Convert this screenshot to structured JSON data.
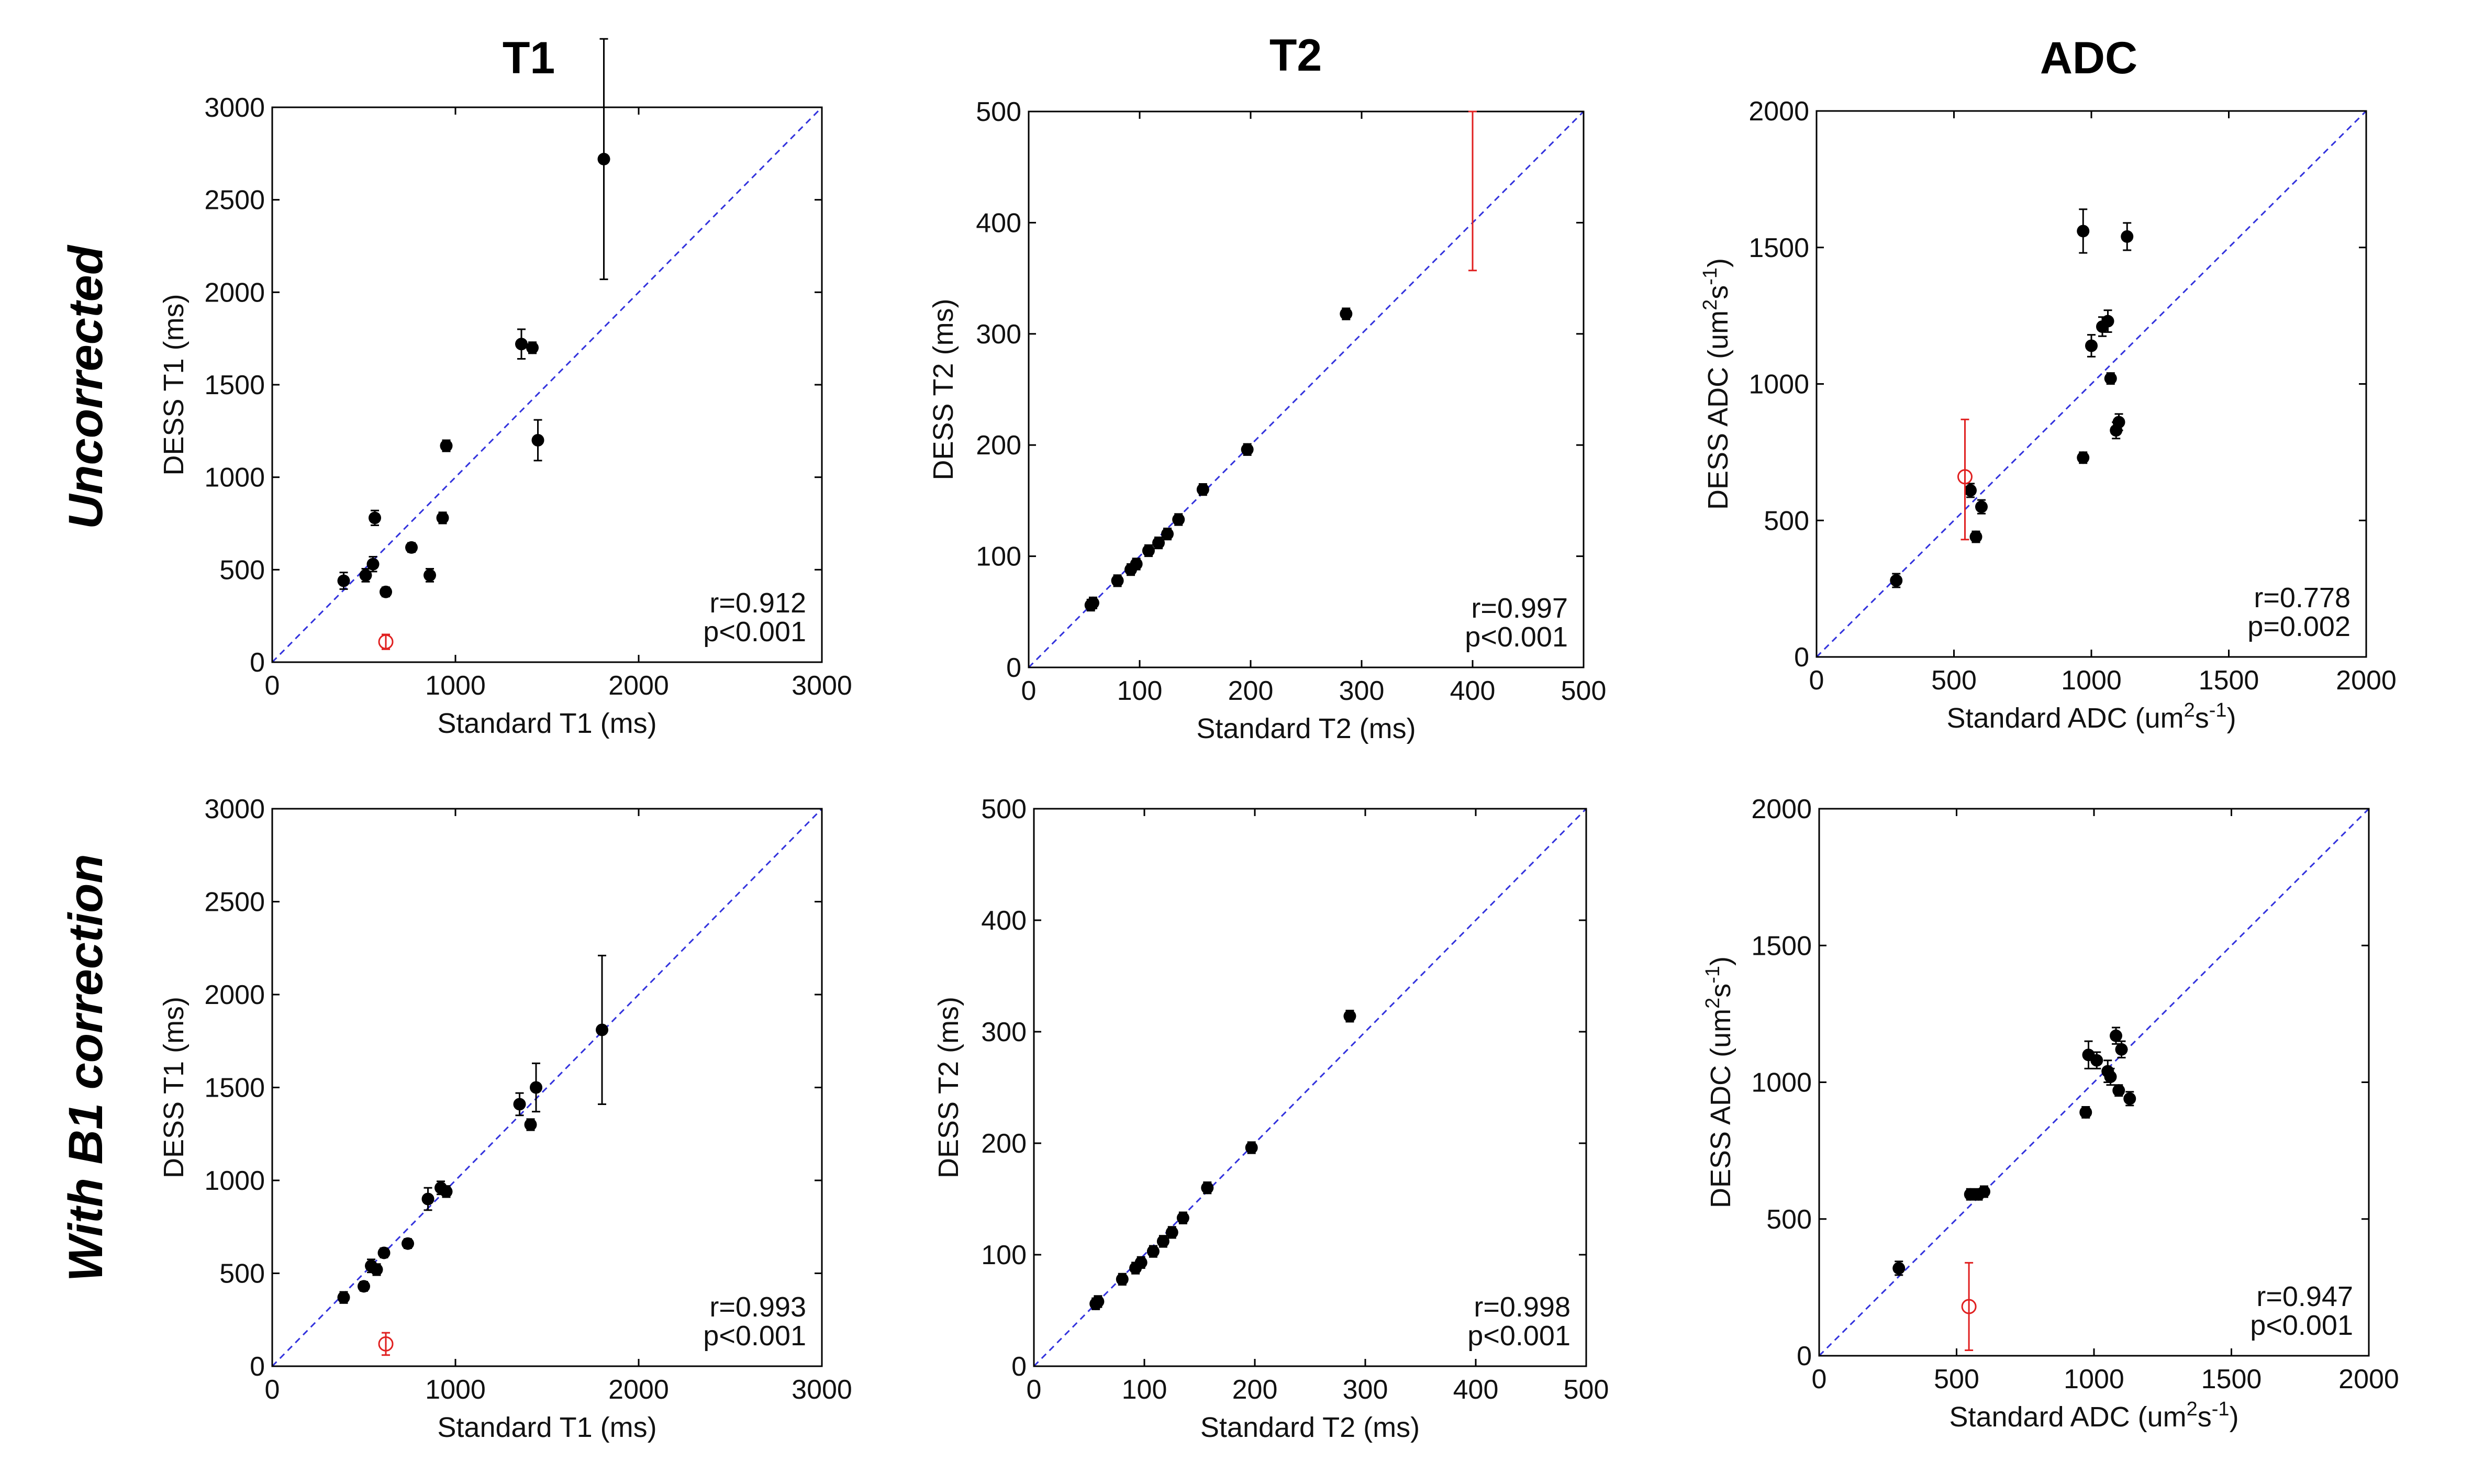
{
  "column_titles": [
    "T1",
    "T2",
    "ADC"
  ],
  "row_titles": [
    "Uncorrected",
    "With B1 correction"
  ],
  "chart_data": [
    {
      "type": "scatter",
      "row": 0,
      "col": 0,
      "title": "T1",
      "xlabel": "Standard T1 (ms)",
      "ylabel": "DESS T1 (ms)",
      "xlim": [
        0,
        3000
      ],
      "ylim": [
        0,
        3000
      ],
      "xticks": [
        0,
        1000,
        2000,
        3000
      ],
      "yticks": [
        0,
        500,
        1000,
        1500,
        2000,
        2500,
        3000
      ],
      "stat_r": "r=0.912",
      "stat_p": "p<0.001",
      "points": [
        {
          "x": 390,
          "y": 440,
          "err": 45
        },
        {
          "x": 510,
          "y": 470,
          "err": 35
        },
        {
          "x": 550,
          "y": 530,
          "err": 40
        },
        {
          "x": 560,
          "y": 780,
          "err": 40
        },
        {
          "x": 620,
          "y": 380,
          "err": 25
        },
        {
          "x": 760,
          "y": 620,
          "err": 25
        },
        {
          "x": 860,
          "y": 470,
          "err": 35
        },
        {
          "x": 930,
          "y": 780,
          "err": 30
        },
        {
          "x": 950,
          "y": 1170,
          "err": 30
        },
        {
          "x": 1360,
          "y": 1720,
          "err": 80
        },
        {
          "x": 1420,
          "y": 1700,
          "err": 30
        },
        {
          "x": 1450,
          "y": 1200,
          "err": 110
        },
        {
          "x": 1810,
          "y": 2720,
          "err": 650
        }
      ],
      "outliers": [
        {
          "x": 620,
          "y": 110,
          "err": 40
        }
      ]
    },
    {
      "type": "scatter",
      "row": 0,
      "col": 1,
      "title": "T2",
      "xlabel": "Standard T2 (ms)",
      "ylabel": "DESS T2 (ms)",
      "xlim": [
        0,
        500
      ],
      "ylim": [
        0,
        500
      ],
      "xticks": [
        0,
        100,
        200,
        300,
        400,
        500
      ],
      "yticks": [
        0,
        100,
        200,
        300,
        400,
        500
      ],
      "stat_r": "r=0.997",
      "stat_p": "p<0.001",
      "points": [
        {
          "x": 56,
          "y": 56,
          "err": 5
        },
        {
          "x": 58,
          "y": 58,
          "err": 5
        },
        {
          "x": 80,
          "y": 78,
          "err": 5
        },
        {
          "x": 92,
          "y": 88,
          "err": 5
        },
        {
          "x": 97,
          "y": 93,
          "err": 5
        },
        {
          "x": 108,
          "y": 105,
          "err": 5
        },
        {
          "x": 117,
          "y": 112,
          "err": 5
        },
        {
          "x": 125,
          "y": 120,
          "err": 5
        },
        {
          "x": 135,
          "y": 133,
          "err": 5
        },
        {
          "x": 157,
          "y": 160,
          "err": 5
        },
        {
          "x": 197,
          "y": 196,
          "err": 5
        },
        {
          "x": 286,
          "y": 318,
          "err": 5
        }
      ],
      "outliers": [
        {
          "x": 400,
          "y": 500,
          "err": 0,
          "bar_low": 357,
          "bar_high": 500,
          "hidden_marker": true
        }
      ]
    },
    {
      "type": "scatter",
      "row": 0,
      "col": 2,
      "title": "ADC",
      "xlabel": "Standard ADC (um²s⁻¹)",
      "ylabel": "DESS ADC (um²s⁻¹)",
      "xlabel_base": "Standard ADC (um",
      "xlabel_sup1": "2",
      "xlabel_mid": "s",
      "xlabel_sup2": "-1",
      "xlabel_end": ")",
      "ylabel_base": "DESS ADC (um",
      "ylabel_sup1": "2",
      "ylabel_mid": "s",
      "ylabel_sup2": "-1",
      "ylabel_end": ")",
      "xlim": [
        0,
        2000
      ],
      "ylim": [
        0,
        2000
      ],
      "xticks": [
        0,
        500,
        1000,
        1500,
        2000
      ],
      "yticks": [
        0,
        500,
        1000,
        1500,
        2000
      ],
      "stat_r": "r=0.778",
      "stat_p": "p=0.002",
      "points": [
        {
          "x": 290,
          "y": 280,
          "err": 25
        },
        {
          "x": 560,
          "y": 610,
          "err": 25
        },
        {
          "x": 580,
          "y": 440,
          "err": 20
        },
        {
          "x": 600,
          "y": 550,
          "err": 25
        },
        {
          "x": 970,
          "y": 730,
          "err": 20
        },
        {
          "x": 970,
          "y": 1560,
          "err": 80
        },
        {
          "x": 1000,
          "y": 1140,
          "err": 40
        },
        {
          "x": 1040,
          "y": 1210,
          "err": 35
        },
        {
          "x": 1060,
          "y": 1230,
          "err": 40
        },
        {
          "x": 1070,
          "y": 1020,
          "err": 20
        },
        {
          "x": 1090,
          "y": 830,
          "err": 30
        },
        {
          "x": 1100,
          "y": 860,
          "err": 30
        },
        {
          "x": 1130,
          "y": 1540,
          "err": 50
        }
      ],
      "outliers": [
        {
          "x": 540,
          "y": 660,
          "err": 0,
          "bar_low": 430,
          "bar_high": 870
        }
      ]
    },
    {
      "type": "scatter",
      "row": 1,
      "col": 0,
      "title": "T1",
      "xlabel": "Standard T1 (ms)",
      "ylabel": "DESS T1 (ms)",
      "xlim": [
        0,
        3000
      ],
      "ylim": [
        0,
        3000
      ],
      "xticks": [
        0,
        1000,
        2000,
        3000
      ],
      "yticks": [
        0,
        500,
        1000,
        1500,
        2000,
        2500,
        3000
      ],
      "stat_r": "r=0.993",
      "stat_p": "p<0.001",
      "points": [
        {
          "x": 390,
          "y": 370,
          "err": 30
        },
        {
          "x": 500,
          "y": 430,
          "err": 25
        },
        {
          "x": 540,
          "y": 540,
          "err": 35
        },
        {
          "x": 570,
          "y": 520,
          "err": 30
        },
        {
          "x": 610,
          "y": 610,
          "err": 25
        },
        {
          "x": 740,
          "y": 660,
          "err": 25
        },
        {
          "x": 850,
          "y": 900,
          "err": 60
        },
        {
          "x": 920,
          "y": 960,
          "err": 35
        },
        {
          "x": 950,
          "y": 940,
          "err": 30
        },
        {
          "x": 1350,
          "y": 1410,
          "err": 60
        },
        {
          "x": 1410,
          "y": 1300,
          "err": 30
        },
        {
          "x": 1440,
          "y": 1500,
          "err": 130
        },
        {
          "x": 1800,
          "y": 1810,
          "err": 400
        }
      ],
      "outliers": [
        {
          "x": 620,
          "y": 120,
          "err": 60
        }
      ]
    },
    {
      "type": "scatter",
      "row": 1,
      "col": 1,
      "title": "T2",
      "xlabel": "Standard T2 (ms)",
      "ylabel": "DESS T2 (ms)",
      "xlim": [
        0,
        500
      ],
      "ylim": [
        0,
        500
      ],
      "xticks": [
        0,
        100,
        200,
        300,
        400,
        500
      ],
      "yticks": [
        0,
        100,
        200,
        300,
        400,
        500
      ],
      "stat_r": "r=0.998",
      "stat_p": "p<0.001",
      "points": [
        {
          "x": 56,
          "y": 56,
          "err": 5
        },
        {
          "x": 58,
          "y": 58,
          "err": 5
        },
        {
          "x": 80,
          "y": 78,
          "err": 5
        },
        {
          "x": 92,
          "y": 88,
          "err": 5
        },
        {
          "x": 97,
          "y": 93,
          "err": 5
        },
        {
          "x": 108,
          "y": 103,
          "err": 5
        },
        {
          "x": 117,
          "y": 112,
          "err": 5
        },
        {
          "x": 125,
          "y": 120,
          "err": 5
        },
        {
          "x": 135,
          "y": 133,
          "err": 5
        },
        {
          "x": 157,
          "y": 160,
          "err": 5
        },
        {
          "x": 197,
          "y": 196,
          "err": 5
        },
        {
          "x": 286,
          "y": 314,
          "err": 5
        }
      ],
      "outliers": []
    },
    {
      "type": "scatter",
      "row": 1,
      "col": 2,
      "title": "ADC",
      "xlabel": "Standard ADC (um²s⁻¹)",
      "ylabel": "DESS ADC (um²s⁻¹)",
      "xlabel_base": "Standard ADC (um",
      "xlabel_sup1": "2",
      "xlabel_mid": "s",
      "xlabel_sup2": "-1",
      "xlabel_end": ")",
      "ylabel_base": "DESS ADC (um",
      "ylabel_sup1": "2",
      "ylabel_mid": "s",
      "ylabel_sup2": "-1",
      "ylabel_end": ")",
      "xlim": [
        0,
        2000
      ],
      "ylim": [
        0,
        2000
      ],
      "xticks": [
        0,
        500,
        1000,
        1500,
        2000
      ],
      "yticks": [
        0,
        500,
        1000,
        1500,
        2000
      ],
      "stat_r": "r=0.947",
      "stat_p": "p<0.001",
      "points": [
        {
          "x": 290,
          "y": 320,
          "err": 25
        },
        {
          "x": 550,
          "y": 590,
          "err": 20
        },
        {
          "x": 580,
          "y": 590,
          "err": 20
        },
        {
          "x": 600,
          "y": 600,
          "err": 20
        },
        {
          "x": 970,
          "y": 890,
          "err": 20
        },
        {
          "x": 980,
          "y": 1100,
          "err": 50
        },
        {
          "x": 1010,
          "y": 1080,
          "err": 30
        },
        {
          "x": 1050,
          "y": 1040,
          "err": 40
        },
        {
          "x": 1060,
          "y": 1020,
          "err": 30
        },
        {
          "x": 1080,
          "y": 1170,
          "err": 30
        },
        {
          "x": 1090,
          "y": 970,
          "err": 20
        },
        {
          "x": 1100,
          "y": 1120,
          "err": 30
        },
        {
          "x": 1130,
          "y": 940,
          "err": 25
        }
      ],
      "outliers": [
        {
          "x": 545,
          "y": 180,
          "err": 0,
          "bar_low": 20,
          "bar_high": 340
        }
      ]
    }
  ],
  "colors": {
    "points": "#000000",
    "outlier": "#e02020",
    "identity_line": "#3333dd",
    "axes": "#000000"
  }
}
